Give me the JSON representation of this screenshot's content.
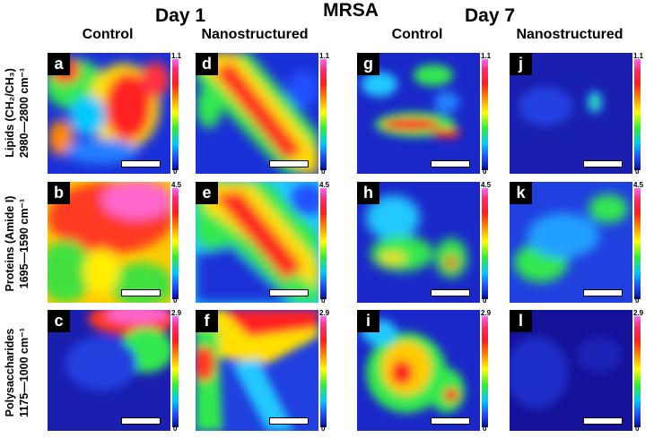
{
  "figure_title": "MRSA",
  "days": [
    {
      "label": "Day 1"
    },
    {
      "label": "Day 7"
    }
  ],
  "columns": [
    {
      "label": "Control"
    },
    {
      "label": "Nanostructured"
    },
    {
      "label": "Control"
    },
    {
      "label": "Nanostructured"
    }
  ],
  "rows": [
    {
      "line1": "Lipids (CH₂/CH₃)",
      "line2": "2980—2800 cm⁻¹",
      "cmax": "1.1",
      "cmin": "0"
    },
    {
      "line1": "Proteins (Amide I)",
      "line2": "1695—1590 cm⁻¹",
      "cmax": "4.5",
      "cmin": "0"
    },
    {
      "line1": "Polysaccharides",
      "line2": "1175—1000 cm⁻¹",
      "cmax": "2.9",
      "cmin": "0"
    }
  ],
  "panels": [
    {
      "letter": "a"
    },
    {
      "letter": "d"
    },
    {
      "letter": "g"
    },
    {
      "letter": "j"
    },
    {
      "letter": "b"
    },
    {
      "letter": "e"
    },
    {
      "letter": "h"
    },
    {
      "letter": "k"
    },
    {
      "letter": "c"
    },
    {
      "letter": "f"
    },
    {
      "letter": "i"
    },
    {
      "letter": "l"
    }
  ]
}
